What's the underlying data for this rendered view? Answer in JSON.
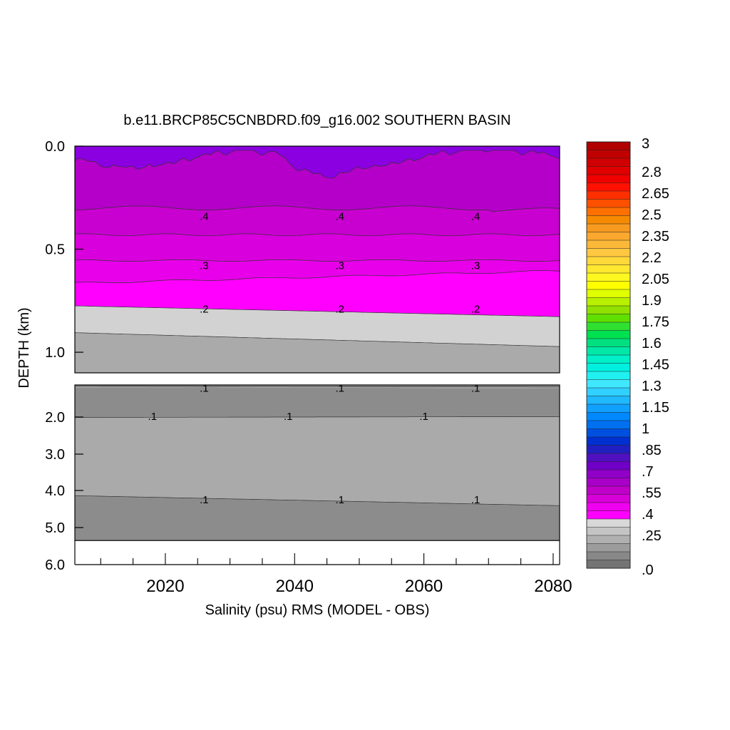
{
  "title": "b.e11.BRCP85C5CNBDRD.f09_g16.002 SOUTHERN BASIN",
  "chart_data": {
    "type": "heatmap",
    "title": "b.e11.BRCP85C5CNBDRD.f09_g16.002 SOUTHERN BASIN",
    "xlabel": "Salinity (psu) RMS (MODEL - OBS)",
    "ylabel": "DEPTH (km)",
    "xlim": [
      2006,
      2081
    ],
    "x_ticks": [
      2020,
      2040,
      2060,
      2080
    ],
    "x_tick_labels": [
      "2020",
      "2040",
      "2060",
      "2080"
    ],
    "upper_panel": {
      "depth_range_km": [
        0.0,
        1.1
      ],
      "y_ticks": [
        0.0,
        0.5,
        1.0
      ],
      "y_tick_labels": [
        "0.0",
        "0.5",
        "1.0"
      ],
      "contour_levels": [
        0.4,
        0.3,
        0.2
      ],
      "contour_labels": [
        {
          "text": ".4",
          "x": [
            2026,
            2047,
            2068
          ],
          "depth": 0.34
        },
        {
          "text": ".3",
          "x": [
            2026,
            2047,
            2068
          ],
          "depth": 0.58
        },
        {
          "text": ".2",
          "x": [
            2026,
            2047,
            2068
          ],
          "depth": 0.79
        }
      ]
    },
    "lower_panel": {
      "depth_range_km": [
        1.0,
        6.0
      ],
      "y_ticks": [
        2.0,
        3.0,
        4.0,
        5.0,
        6.0
      ],
      "y_tick_labels": [
        "2.0",
        "3.0",
        "4.0",
        "5.0",
        "6.0"
      ],
      "bottom_depth_km": 5.35,
      "contour_labels": [
        {
          "text": ".1",
          "x": [
            2026,
            2047,
            2068
          ],
          "depth": 1.1
        },
        {
          "text": ".1",
          "x": [
            2018,
            2039,
            2060
          ],
          "depth": 1.98
        },
        {
          "text": ".1",
          "x": [
            2026,
            2047,
            2068
          ],
          "depth": 4.25
        }
      ]
    },
    "colorbar": {
      "labels": [
        "3",
        "2.8",
        "2.65",
        "2.5",
        "2.35",
        "2.2",
        "2.05",
        "1.9",
        "1.75",
        "1.6",
        "1.45",
        "1.3",
        "1.15",
        "1",
        ".85",
        ".7",
        ".55",
        ".4",
        ".25",
        ".0"
      ],
      "min": 0,
      "max": 3,
      "colors_top_to_bottom": [
        "#b00000",
        "#c00000",
        "#d00000",
        "#e00000",
        "#f00000",
        "#ff1000",
        "#ff3000",
        "#ff5000",
        "#ff7000",
        "#f58a00",
        "#f79a20",
        "#faa82e",
        "#fcb838",
        "#ffc840",
        "#ffd83a",
        "#ffe830",
        "#fff820",
        "#ffff00",
        "#e0ff00",
        "#b8f000",
        "#90e000",
        "#60e000",
        "#30e030",
        "#00e050",
        "#00e080",
        "#00e8a8",
        "#00f0c8",
        "#00f0e0",
        "#20f0f0",
        "#40e8ff",
        "#30d0ff",
        "#20b8ff",
        "#10a0ff",
        "#0088ff",
        "#0070f0",
        "#0050e0",
        "#0030d0",
        "#2020c0",
        "#5010c0",
        "#7000c8",
        "#9000c8",
        "#a800c8",
        "#c000c8",
        "#d800d8",
        "#f000f0",
        "#ff00ff",
        "#d8d8d8",
        "#c4c4c4",
        "#b0b0b0",
        "#9c9c9c",
        "#888888",
        "#747474"
      ]
    },
    "fill_colors": {
      "band_gt_0_5": "#8a00e0",
      "band_0_4_0_5": "#b400c8",
      "band_0_35_0_4": "#c800d0",
      "band_0_3_0_35": "#d800dc",
      "band_0_25_0_3": "#e800ea",
      "band_0_2_0_25": "#ff00ff",
      "band_0_15_0_2": "#d2d2d2",
      "band_0_1_0_15": "#aaaaaa",
      "band_0_05_0_1": "#8c8c8c",
      "topography": "#ffffff"
    }
  }
}
